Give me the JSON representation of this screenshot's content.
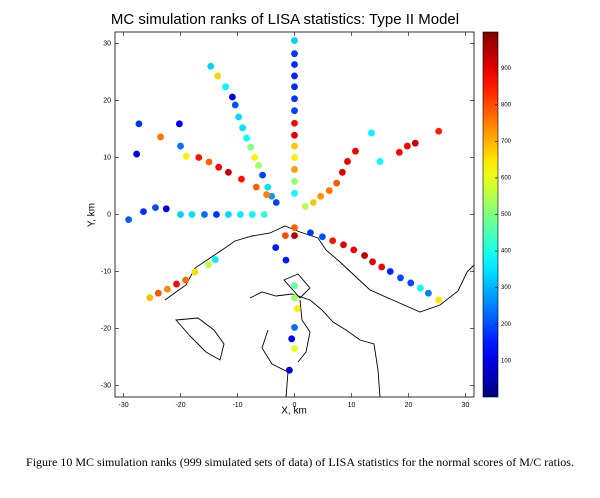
{
  "chart_data": {
    "type": "scatter",
    "title": "MC simulation ranks of LISA statistics: Type II Model",
    "xlabel": "X, km",
    "ylabel": "Y, km",
    "caption": "Figure 10 MC simulation ranks (999 simulated sets of data) of LISA statistics for the normal scores of M/C ratios.",
    "colormap": "jet",
    "clim": [
      1,
      999
    ],
    "cticks": [
      100,
      200,
      300,
      400,
      500,
      600,
      700,
      800,
      900
    ],
    "xlim": [
      -31.5,
      31.5
    ],
    "ylim": [
      -32,
      32
    ],
    "xticks": [
      -30,
      -20,
      -10,
      0,
      10,
      20,
      30
    ],
    "yticks": [
      -30,
      -20,
      -10,
      0,
      10,
      20,
      30
    ],
    "x": [
      0,
      0,
      0,
      0,
      0,
      0,
      0,
      0,
      0,
      0,
      0,
      0,
      0,
      0,
      0,
      0,
      -1.5,
      0,
      0,
      0.5,
      0,
      -0.5,
      0,
      -0.9,
      -20,
      -18,
      -15.8,
      -13.7,
      -11.6,
      -9.5,
      -7.4,
      -5.3,
      -29.1,
      -26.5,
      -24.4,
      -22.5,
      -14.7,
      -13.5,
      -12.1,
      -10.9,
      -10.4,
      -9.8,
      -9.1,
      -8.4,
      -7.7,
      -7,
      -6.3,
      -5.6,
      -4.7,
      -4,
      -19,
      -16.8,
      -15,
      -13.3,
      -11.6,
      -9.3,
      -6.7,
      -4.9,
      -3.2,
      -27.3,
      -27.7,
      -23.5,
      -20.2,
      -20,
      25.3,
      21.2,
      19.8,
      18.4,
      10.7,
      9.3,
      8.4,
      7.4,
      6.1,
      4.6,
      3.3,
      1.9,
      13.5,
      15,
      2.8,
      4.9,
      6.7,
      8.6,
      10.4,
      12.3,
      13.7,
      15.3,
      16.8,
      18.6,
      20.4,
      22.1,
      23.5,
      25.3,
      -1.6,
      -3.3,
      -13.9,
      -15.1,
      -17.5,
      -19.1,
      -20.7,
      -22.3,
      -23.9,
      -25.4
    ],
    "y": [
      30.5,
      28.2,
      26.3,
      24.3,
      22.4,
      20.3,
      18.2,
      16,
      13.9,
      12,
      10,
      7.9,
      5.8,
      3.7,
      -2.3,
      -3.7,
      -8,
      -12.5,
      -14.6,
      -16.5,
      -19.8,
      -21.8,
      -23.5,
      -27.3,
      0,
      0,
      0,
      0,
      0,
      0,
      0,
      0,
      -0.9,
      0.5,
      1.2,
      1,
      26,
      24.3,
      22.4,
      20.6,
      19.2,
      17.1,
      15.2,
      13.4,
      11.8,
      10,
      8.6,
      6.9,
      4.8,
      3.2,
      10.2,
      10,
      9.2,
      8.3,
      7.4,
      6.2,
      4.8,
      3.5,
      2.1,
      15.9,
      10.6,
      13.6,
      15.9,
      12,
      14.6,
      12.5,
      12,
      10.9,
      11.1,
      9.3,
      7.4,
      5.5,
      4.2,
      3.2,
      2.1,
      1.4,
      14.3,
      9.3,
      -3.2,
      -3.9,
      -4.6,
      -5.3,
      -6.2,
      -7.2,
      -8.3,
      -9.2,
      -10,
      -11.1,
      -12,
      -12.9,
      -13.8,
      -15,
      -3.7,
      -5.8,
      -7.9,
      -8.8,
      -10.1,
      -11.5,
      -12.2,
      -13.1,
      -13.8,
      -14.6
    ],
    "values": [
      330,
      180,
      170,
      160,
      170,
      180,
      190,
      870,
      900,
      680,
      640,
      720,
      520,
      380,
      780,
      950,
      150,
      470,
      530,
      640,
      230,
      120,
      600,
      90,
      330,
      350,
      230,
      180,
      340,
      360,
      370,
      420,
      220,
      170,
      200,
      90,
      330,
      670,
      370,
      100,
      200,
      340,
      350,
      380,
      500,
      640,
      530,
      190,
      350,
      280,
      640,
      860,
      780,
      870,
      930,
      860,
      780,
      750,
      190,
      180,
      100,
      760,
      110,
      240,
      850,
      920,
      880,
      870,
      880,
      890,
      900,
      790,
      760,
      730,
      680,
      550,
      370,
      380,
      180,
      200,
      860,
      900,
      880,
      930,
      900,
      880,
      160,
      200,
      200,
      380,
      250,
      650,
      800,
      150,
      360,
      560,
      660,
      770,
      870,
      740,
      790,
      690
    ]
  }
}
